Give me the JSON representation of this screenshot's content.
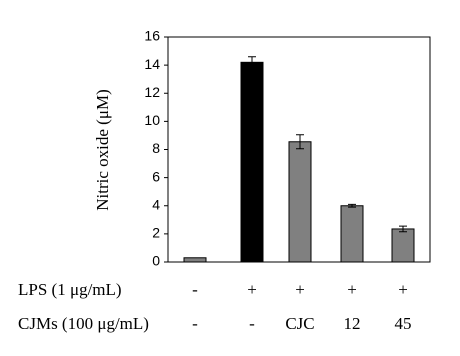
{
  "chart_data": {
    "type": "bar",
    "ylabel": "Nitric oxide (μM)",
    "values": [
      0.3,
      14.2,
      8.55,
      4.0,
      2.35
    ],
    "errors": [
      null,
      0.4,
      0.5,
      0.1,
      0.2
    ],
    "colors": [
      "#808080",
      "#000000",
      "#808080",
      "#808080",
      "#808080"
    ],
    "ylim": [
      0,
      16
    ],
    "yticks": [
      0,
      2,
      4,
      6,
      8,
      10,
      12,
      14,
      16
    ],
    "rows": [
      {
        "label": "LPS (1 μg/mL)",
        "cells": [
          "-",
          "+",
          "+",
          "+",
          "+"
        ]
      },
      {
        "label": "CJMs (100 μg/mL)",
        "cells": [
          "-",
          "-",
          "CJC",
          "12",
          "45"
        ]
      }
    ]
  }
}
